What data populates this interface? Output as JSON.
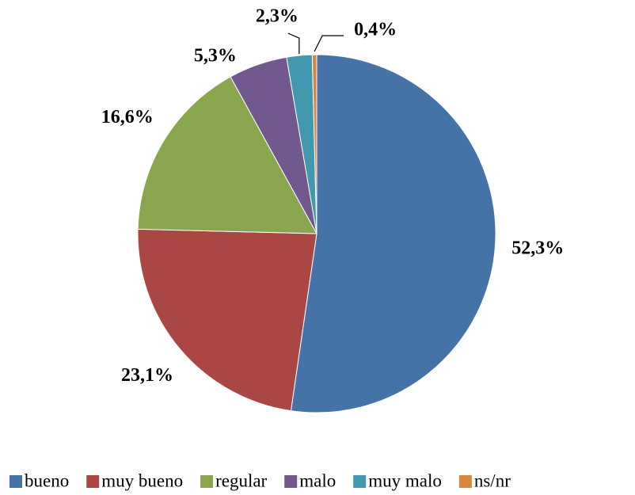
{
  "chart_data": {
    "type": "pie",
    "categories": [
      "bueno",
      "muy bueno",
      "regular",
      "malo",
      "muy malo",
      "ns/nr"
    ],
    "values": [
      52.3,
      23.1,
      16.6,
      5.3,
      2.3,
      0.4
    ],
    "value_labels": [
      "52,3%",
      "23,1%",
      "16,6%",
      "5,3%",
      "2,3%",
      "0,4%"
    ],
    "colors": [
      "#4572a7",
      "#aa4643",
      "#89a54e",
      "#71588f",
      "#4198af",
      "#db843d"
    ],
    "legend": "bottom"
  }
}
